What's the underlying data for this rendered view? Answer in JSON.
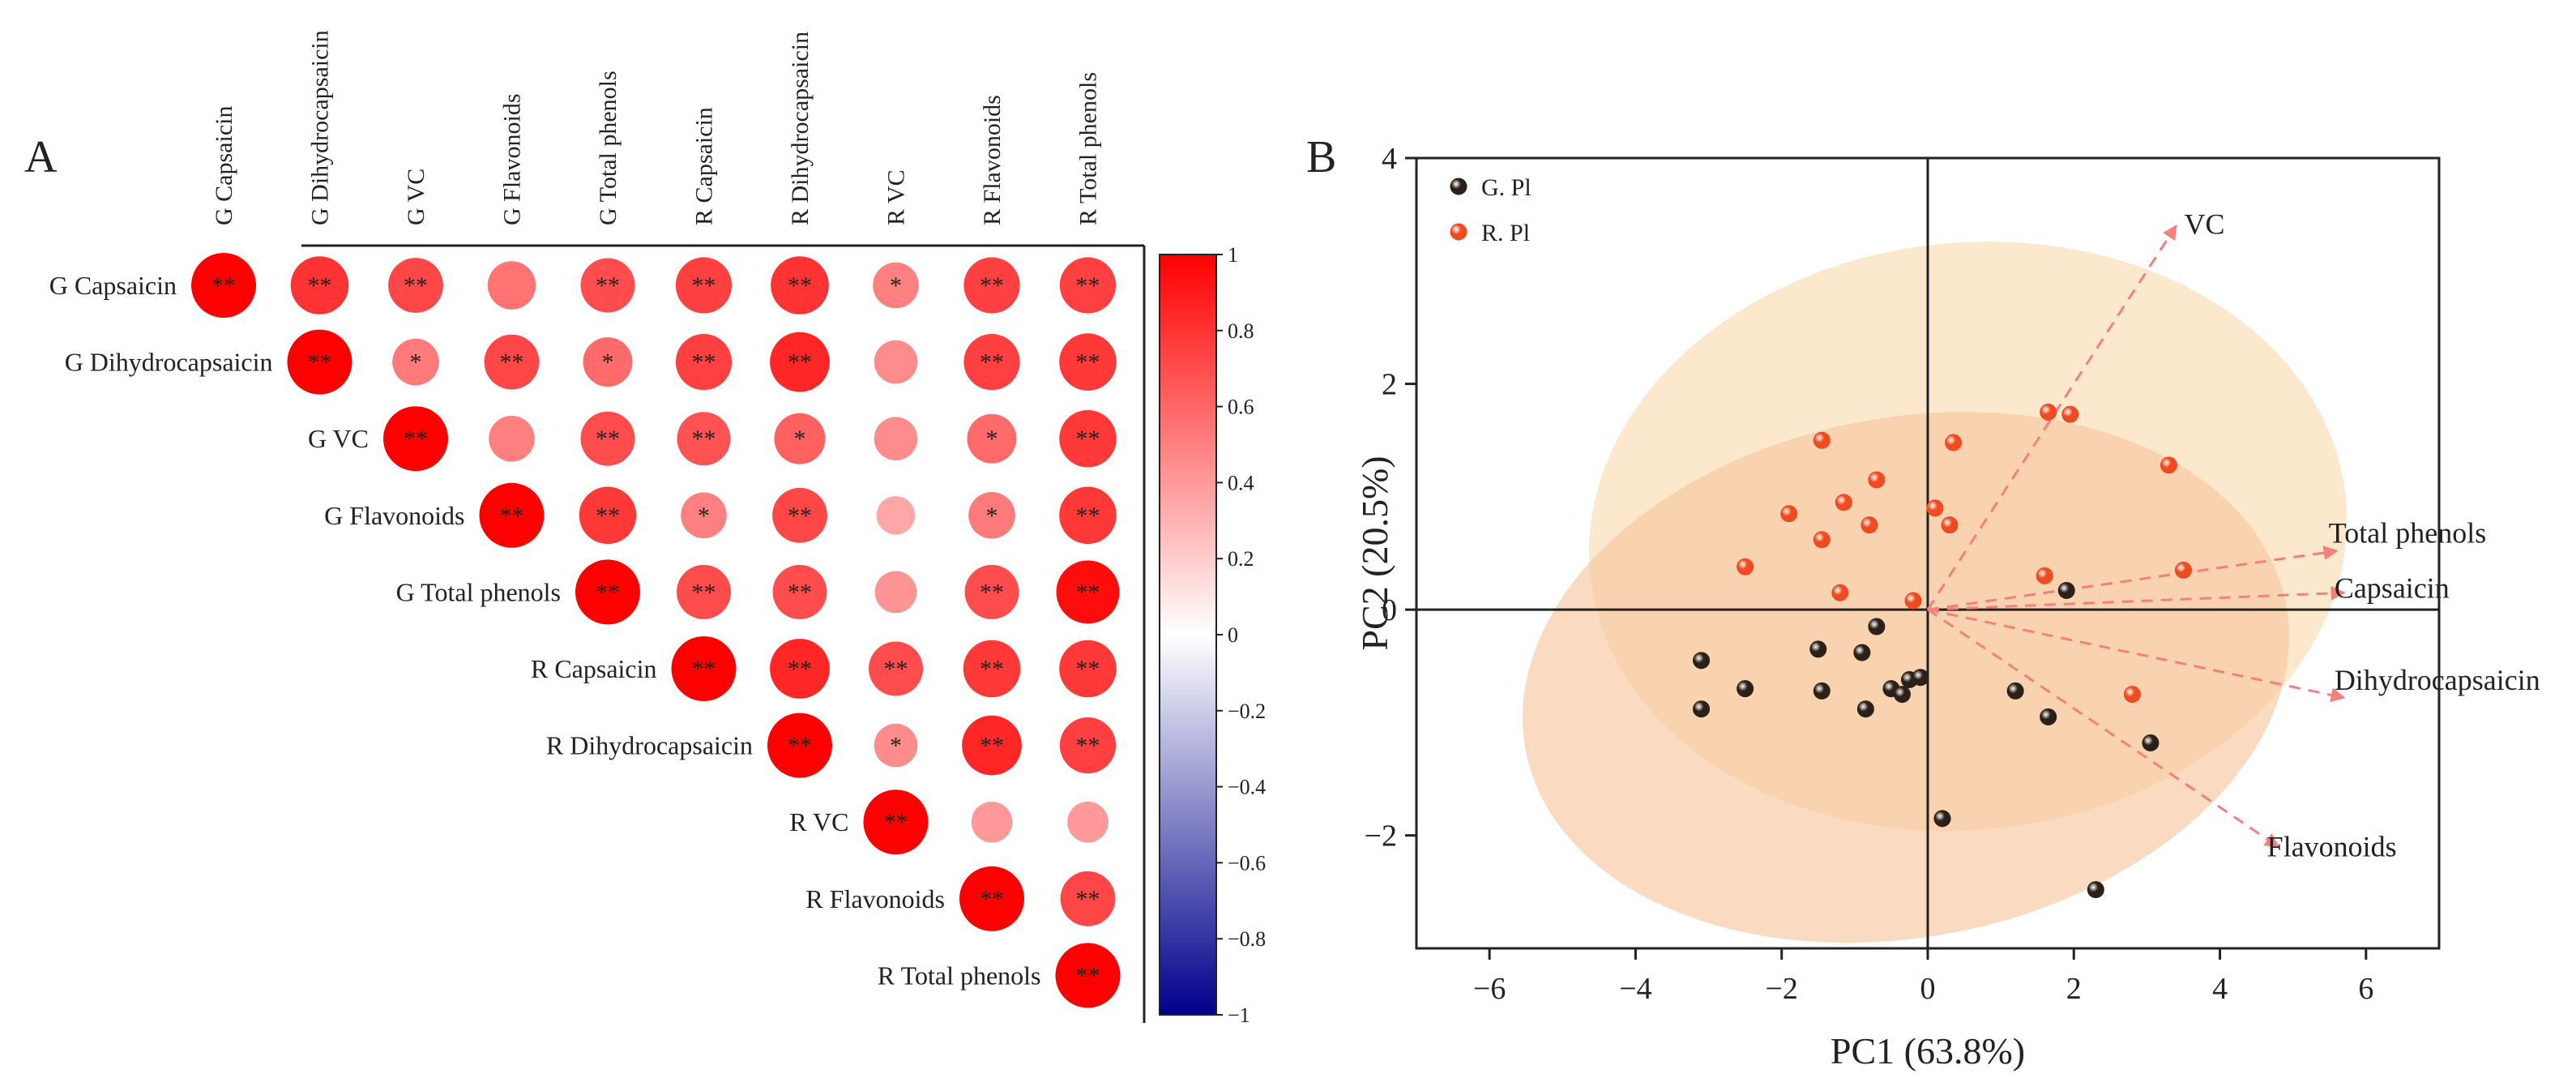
{
  "panels": {
    "a_label": "A",
    "b_label": "B"
  },
  "chart_data": [
    {
      "type": "heatmap",
      "subtype": "correlation-circles-upper-triangle",
      "row_labels": [
        "G Capsaicin",
        "G Dihydrocapsaicin",
        "G VC",
        "G Flavonoids",
        "G Total phenols",
        "R  Capsaicin",
        "R  Dihydrocapsaicin",
        "R  VC",
        "R  Flavonoids",
        "R  Total phenols"
      ],
      "column_labels": [
        "G Capsaicin",
        "G Dihydrocapsaicin",
        "G VC",
        "G Flavonoids",
        "G Total phenols",
        "R  Capsaicin",
        "R  Dihydrocapsaicin",
        "R  VC",
        "R  Flavonoids",
        "R  Total phenols"
      ],
      "matrix": [
        [
          1.0,
          0.8,
          0.72,
          0.55,
          0.7,
          0.75,
          0.8,
          0.5,
          0.75,
          0.75
        ],
        [
          null,
          1.0,
          0.52,
          0.72,
          0.58,
          0.75,
          0.85,
          0.45,
          0.75,
          0.78
        ],
        [
          null,
          null,
          1.0,
          0.5,
          0.7,
          0.68,
          0.62,
          0.45,
          0.58,
          0.78
        ],
        [
          null,
          null,
          null,
          1.0,
          0.78,
          0.5,
          0.72,
          0.35,
          0.52,
          0.78
        ],
        [
          null,
          null,
          null,
          null,
          1.0,
          0.7,
          0.7,
          0.42,
          0.7,
          0.95
        ],
        [
          null,
          null,
          null,
          null,
          null,
          1.0,
          0.85,
          0.7,
          0.78,
          0.78
        ],
        [
          null,
          null,
          null,
          null,
          null,
          null,
          1.0,
          0.45,
          0.85,
          0.75
        ],
        [
          null,
          null,
          null,
          null,
          null,
          null,
          null,
          1.0,
          0.4,
          0.4
        ],
        [
          null,
          null,
          null,
          null,
          null,
          null,
          null,
          null,
          1.0,
          0.72
        ],
        [
          null,
          null,
          null,
          null,
          null,
          null,
          null,
          null,
          null,
          1.0
        ]
      ],
      "significance": [
        [
          "**",
          "**",
          "**",
          "",
          "**",
          "**",
          "**",
          "*",
          "**",
          "**"
        ],
        [
          "",
          "**",
          "*",
          "**",
          "*",
          "**",
          "**",
          "",
          "**",
          "**"
        ],
        [
          "",
          "",
          "**",
          "",
          "**",
          "**",
          "*",
          "",
          "*",
          "**"
        ],
        [
          "",
          "",
          "",
          "**",
          "**",
          "*",
          "**",
          "",
          "*",
          "**"
        ],
        [
          "",
          "",
          "",
          "",
          "**",
          "**",
          "**",
          "",
          "**",
          "**"
        ],
        [
          "",
          "",
          "",
          "",
          "",
          "**",
          "**",
          "**",
          "**",
          "**"
        ],
        [
          "",
          "",
          "",
          "",
          "",
          "",
          "**",
          "*",
          "**",
          "**"
        ],
        [
          "",
          "",
          "",
          "",
          "",
          "",
          "",
          "**",
          "",
          ""
        ],
        [
          "",
          "",
          "",
          "",
          "",
          "",
          "",
          "",
          "**",
          "**"
        ],
        [
          "",
          "",
          "",
          "",
          "",
          "",
          "",
          "",
          "",
          "**"
        ]
      ],
      "colorbar": {
        "range": [
          -1,
          1
        ],
        "ticks": [
          "1",
          "0.8",
          "0.6",
          "0.4",
          "0.2",
          "0",
          "−0.2",
          "−0.4",
          "−0.6",
          "−0.8",
          "−1"
        ],
        "colors": {
          "high": "#ff0000",
          "mid": "#ffffff",
          "low": "#00008b"
        }
      }
    },
    {
      "type": "scatter",
      "subtype": "pca-biplot",
      "xlabel": "PC1 (63.8%)",
      "ylabel": "PC2 (20.5%)",
      "xlim": [
        -7,
        7
      ],
      "ylim": [
        -3,
        4
      ],
      "xticks": [
        -6,
        -4,
        -2,
        0,
        2,
        4,
        6
      ],
      "yticks": [
        -2,
        0,
        2,
        4
      ],
      "xtick_labels": [
        "−6",
        "−4",
        "−2",
        "0",
        "2",
        "4",
        "6"
      ],
      "ytick_labels": [
        "−2",
        "0",
        "2",
        "4"
      ],
      "legend": [
        {
          "name": "G. Pl",
          "color": "#2b2118"
        },
        {
          "name": "R. Pl",
          "color": "#f04a20"
        }
      ],
      "series": [
        {
          "name": "G. Pl",
          "points": [
            [
              -3.1,
              -0.45
            ],
            [
              -3.1,
              -0.88
            ],
            [
              -2.5,
              -0.7
            ],
            [
              -1.5,
              -0.35
            ],
            [
              -1.45,
              -0.72
            ],
            [
              -0.9,
              -0.38
            ],
            [
              -0.85,
              -0.88
            ],
            [
              -0.7,
              -0.15
            ],
            [
              -0.5,
              -0.7
            ],
            [
              -0.35,
              -0.75
            ],
            [
              -0.25,
              -0.62
            ],
            [
              -0.1,
              -0.6
            ],
            [
              0.2,
              -1.85
            ],
            [
              1.2,
              -0.72
            ],
            [
              1.65,
              -0.95
            ],
            [
              1.9,
              0.17
            ],
            [
              3.05,
              -1.18
            ],
            [
              2.3,
              -2.48
            ]
          ]
        },
        {
          "name": "R. Pl",
          "points": [
            [
              -1.45,
              1.5
            ],
            [
              -0.7,
              1.15
            ],
            [
              -1.15,
              0.95
            ],
            [
              0.35,
              1.48
            ],
            [
              0.1,
              0.9
            ],
            [
              -0.8,
              0.75
            ],
            [
              0.3,
              0.75
            ],
            [
              -1.45,
              0.62
            ],
            [
              -1.9,
              0.85
            ],
            [
              -2.5,
              0.38
            ],
            [
              -1.2,
              0.15
            ],
            [
              -0.2,
              0.08
            ],
            [
              1.65,
              1.75
            ],
            [
              1.95,
              1.73
            ],
            [
              3.3,
              1.28
            ],
            [
              1.6,
              0.3
            ],
            [
              3.5,
              0.35
            ],
            [
              2.8,
              -0.75
            ]
          ]
        }
      ],
      "ellipses": [
        {
          "group": "R. Pl",
          "center": [
            0.55,
            0.65
          ],
          "rx": 5.2,
          "ry": 2.6,
          "angle_deg": -6,
          "color": "#fbdbb0"
        },
        {
          "group": "G. Pl",
          "center": [
            -0.3,
            -0.6
          ],
          "rx": 5.3,
          "ry": 2.3,
          "angle_deg": -11,
          "color": "#f8c7a0"
        }
      ],
      "loadings": [
        {
          "label": "VC",
          "x": 3.4,
          "y": 3.4
        },
        {
          "label": "Total phenols",
          "x": 5.6,
          "y": 0.52
        },
        {
          "label": "Capsaicin",
          "x": 5.7,
          "y": 0.15
        },
        {
          "label": "Dihydrocapsaicin",
          "x": 5.7,
          "y": -0.78
        },
        {
          "label": "Flavonoids",
          "x": 4.8,
          "y": -2.1
        }
      ]
    }
  ]
}
